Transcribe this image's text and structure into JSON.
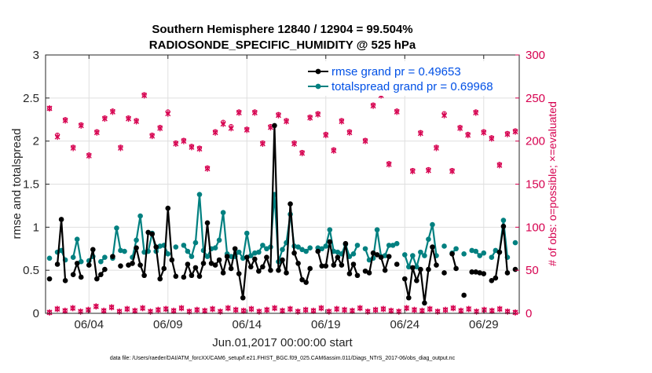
{
  "chart_data": {
    "type": "line",
    "title": "Southern Hemisphere 12840 / 12904 = 99.504%",
    "subtitle": "RADIOSONDE_SPECIFIC_HUMIDITY @ 525 hPa",
    "xlabel": "Jun.01,2017 00:00:00 start",
    "ylabel": "rmse and totalspread",
    "ylabel_right": "# of obs: o=possible; ×=evaluated",
    "footnote": "data file: /Users/raeder/DAI/ATM_forcXX/CAM6_setup/f.e21.FHIST_BGC.f09_025.CAM6assim.011/Diags_NTrS_2017-06/obs_diag_output.nc",
    "xlim": [
      0.75,
      30.75
    ],
    "ylim": [
      0,
      3
    ],
    "ylim_right": [
      0,
      300
    ],
    "x_ticks": [
      3.5,
      8.5,
      13.5,
      18.5,
      23.5,
      28.5
    ],
    "x_tick_labels": [
      "06/04",
      "06/09",
      "06/14",
      "06/19",
      "06/24",
      "06/29"
    ],
    "y_ticks": [
      0,
      0.5,
      1,
      1.5,
      2,
      2.5,
      3
    ],
    "y_tick_labels": [
      "0",
      "0.5",
      "1",
      "1.5",
      "2",
      "2.5",
      "3"
    ],
    "y_ticks_right": [
      0,
      50,
      100,
      150,
      200,
      250,
      300
    ],
    "y_tick_labels_right": [
      "0",
      "50",
      "100",
      "150",
      "200",
      "250",
      "300"
    ],
    "legend_position": "top-right",
    "colors": {
      "rmse": "#000000",
      "spread": "#008080",
      "obs": "#d6004f"
    },
    "x": [
      1.0,
      1.25,
      1.5,
      1.75,
      2.0,
      2.25,
      2.5,
      2.75,
      3.0,
      3.25,
      3.5,
      3.75,
      4.0,
      4.25,
      4.5,
      4.75,
      5.0,
      5.25,
      5.5,
      5.75,
      6.0,
      6.25,
      6.5,
      6.75,
      7.0,
      7.25,
      7.5,
      7.75,
      8.0,
      8.25,
      8.5,
      8.75,
      9.0,
      9.25,
      9.5,
      9.75,
      10.0,
      10.25,
      10.5,
      10.75,
      11.0,
      11.25,
      11.5,
      11.75,
      12.0,
      12.25,
      12.5,
      12.75,
      13.0,
      13.25,
      13.5,
      13.75,
      14.0,
      14.25,
      14.5,
      14.75,
      15.0,
      15.25,
      15.5,
      15.75,
      16.0,
      16.25,
      16.5,
      16.75,
      17.0,
      17.25,
      17.5,
      17.75,
      18.0,
      18.25,
      18.5,
      18.75,
      19.0,
      19.25,
      19.5,
      19.75,
      20.0,
      20.25,
      20.5,
      20.75,
      21.0,
      21.25,
      21.5,
      21.75,
      22.0,
      22.25,
      22.5,
      22.75,
      23.0,
      23.25,
      23.5,
      23.75,
      24.0,
      24.25,
      24.5,
      24.75,
      25.0,
      25.25,
      25.5,
      25.75,
      26.0,
      26.25,
      26.5,
      26.75,
      27.0,
      27.25,
      27.5,
      27.75,
      28.0,
      28.25,
      28.5,
      28.75,
      29.0,
      29.25,
      29.5,
      29.75,
      30.0,
      30.25,
      30.5
    ],
    "series": [
      {
        "name": "rmse grand pr = 0.49653",
        "values": [
          0.4,
          null,
          0.57,
          1.09,
          0.38,
          null,
          0.45,
          0.58,
          0.42,
          null,
          0.56,
          0.74,
          0.4,
          0.45,
          0.51,
          null,
          0.66,
          null,
          0.55,
          null,
          0.56,
          0.58,
          0.76,
          0.56,
          0.44,
          0.94,
          0.92,
          0.77,
          0.4,
          0.52,
          1.22,
          0.62,
          0.43,
          null,
          0.42,
          0.57,
          0.44,
          0.53,
          0.43,
          0.58,
          1.05,
          0.58,
          0.56,
          0.62,
          0.47,
          0.66,
          0.52,
          0.75,
          0.46,
          0.18,
          0.65,
          0.54,
          0.63,
          0.49,
          0.54,
          0.65,
          0.5,
          2.18,
          0.5,
          0.62,
          0.47,
          1.27,
          0.7,
          0.58,
          0.39,
          0.36,
          0.52,
          null,
          0.72,
          0.55,
          0.55,
          0.83,
          0.56,
          0.65,
          0.56,
          0.81,
          0.46,
          0.57,
          0.44,
          null,
          0.49,
          0.47,
          0.7,
          0.68,
          0.65,
          0.5,
          0.66,
          null,
          0.57,
          null,
          0.4,
          0.18,
          0.53,
          0.38,
          0.51,
          0.12,
          0.51,
          0.77,
          0.56,
          null,
          0.47,
          null,
          0.69,
          0.52,
          null,
          0.21,
          null,
          0.48,
          0.48,
          0.47,
          0.46,
          null,
          0.38,
          0.41,
          0.71,
          1.01,
          0.47,
          null,
          0.51
        ]
      },
      {
        "name": "totalspread grand pr = 0.69968",
        "values": [
          0.64,
          null,
          0.71,
          0.73,
          0.62,
          null,
          0.65,
          0.86,
          0.6,
          null,
          0.61,
          0.66,
          null,
          0.6,
          0.65,
          null,
          0.64,
          0.99,
          0.73,
          0.72,
          null,
          0.65,
          0.85,
          1.13,
          0.71,
          0.72,
          0.93,
          0.72,
          0.78,
          0.79,
          0.69,
          null,
          0.77,
          null,
          0.79,
          0.72,
          0.66,
          0.82,
          1.38,
          0.73,
          0.66,
          0.75,
          0.76,
          0.85,
          1.17,
          0.69,
          0.66,
          0.66,
          0.71,
          0.64,
          0.93,
          0.67,
          0.7,
          0.71,
          0.79,
          0.75,
          0.77,
          1.38,
          0.6,
          0.74,
          0.82,
          1.15,
          0.78,
          0.77,
          0.74,
          0.72,
          0.76,
          null,
          0.76,
          0.75,
          0.78,
          0.97,
          0.72,
          0.71,
          0.69,
          0.8,
          0.66,
          0.69,
          0.79,
          null,
          0.75,
          0.62,
          0.64,
          0.97,
          0.66,
          0.67,
          0.79,
          0.79,
          0.81,
          null,
          0.68,
          0.54,
          0.67,
          0.54,
          0.71,
          0.67,
          0.86,
          1.03,
          0.67,
          null,
          0.78,
          null,
          0.7,
          0.75,
          null,
          0.69,
          null,
          0.73,
          0.72,
          0.67,
          0.7,
          null,
          0.65,
          0.73,
          0.71,
          1.08,
          0.65,
          null,
          0.82
        ]
      }
    ],
    "obs_possible_upper": [
      238,
      207,
      225,
      193,
      219,
      184,
      211,
      227,
      235,
      193,
      227,
      224,
      254,
      207,
      216,
      234,
      198,
      201,
      194,
      192,
      169,
      211,
      222,
      217,
      234,
      214,
      234,
      198,
      217,
      231,
      224,
      198,
      187,
      228,
      232,
      208,
      190,
      224,
      211,
      270,
      201,
      242,
      255,
      174,
      235,
      259,
      166,
      210,
      167,
      193,
      232,
      166,
      216,
      208,
      234,
      211,
      204,
      173,
      209,
      212
    ],
    "obs_evaluated_upper": [
      238,
      205,
      224,
      192,
      218,
      183,
      210,
      226,
      234,
      192,
      226,
      223,
      253,
      206,
      215,
      232,
      197,
      200,
      193,
      191,
      168,
      210,
      220,
      215,
      233,
      213,
      233,
      197,
      216,
      230,
      223,
      197,
      186,
      227,
      231,
      207,
      189,
      223,
      210,
      269,
      200,
      241,
      253,
      173,
      234,
      258,
      165,
      209,
      166,
      192,
      230,
      165,
      215,
      207,
      233,
      210,
      203,
      172,
      208,
      211
    ],
    "obs_lower": [
      1,
      5,
      3,
      6,
      2,
      4,
      8,
      3,
      7,
      2,
      5,
      3,
      6,
      2,
      4,
      5,
      3,
      6,
      2,
      4,
      3,
      5,
      2,
      6,
      4,
      3,
      5,
      2,
      4,
      6,
      3,
      5,
      2,
      4,
      3,
      6,
      2,
      5,
      4,
      3,
      6,
      2,
      4,
      5,
      3,
      2,
      6,
      4,
      3,
      5,
      2,
      4,
      6,
      3,
      5,
      2,
      4,
      3,
      5,
      2,
      1
    ],
    "legend": [
      "rmse grand pr = 0.49653",
      "totalspread grand pr = 0.69968"
    ]
  }
}
